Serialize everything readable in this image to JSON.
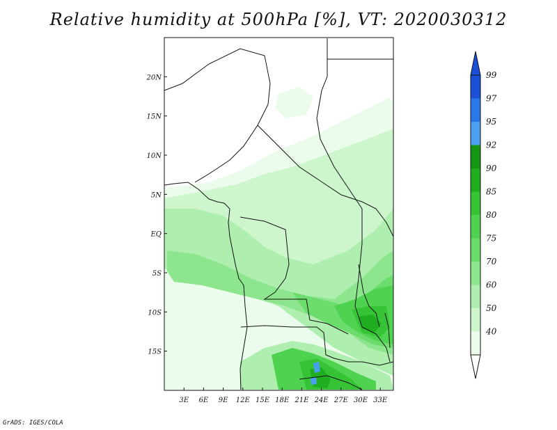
{
  "title": "Relative humidity at 500hPa [%], VT: 2020030312",
  "credit": "GrADS: IGES/COLA",
  "map": {
    "lat_labels": [
      "20N",
      "15N",
      "10N",
      "5N",
      "EQ",
      "5S",
      "10S",
      "15S"
    ],
    "lat_values": [
      20,
      15,
      10,
      5,
      0,
      -5,
      -10,
      -15
    ],
    "lon_labels": [
      "3E",
      "6E",
      "9E",
      "12E",
      "15E",
      "18E",
      "21E",
      "24E",
      "27E",
      "30E",
      "33E"
    ],
    "lon_values": [
      3,
      6,
      9,
      12,
      15,
      18,
      21,
      24,
      27,
      30,
      33
    ],
    "lon_range": [
      0,
      35
    ],
    "lat_range": [
      -20,
      25
    ]
  },
  "colorbar": {
    "labels": [
      "99",
      "97",
      "95",
      "92",
      "90",
      "85",
      "80",
      "75",
      "70",
      "60",
      "50",
      "40"
    ],
    "colors": [
      "#1c4fd8",
      "#2a78e8",
      "#4aa0ef",
      "#149614",
      "#1fae1f",
      "#36c436",
      "#4fd24f",
      "#6cdc6c",
      "#8de58d",
      "#aeeeae",
      "#cdf6cd",
      "#ecfcec"
    ],
    "top_arrow_color": "#1c4fd8",
    "bottom_arrow_color": "#ffffff"
  }
}
